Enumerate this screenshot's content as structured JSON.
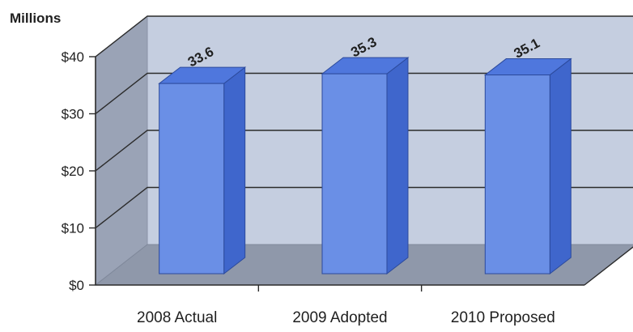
{
  "chart_data": {
    "type": "bar",
    "unit_label": "Millions",
    "categories": [
      "2008 Actual",
      "2009 Adopted",
      "2010 Proposed"
    ],
    "values": [
      33.6,
      35.3,
      35.1
    ],
    "data_labels": [
      "33.6",
      "35.3",
      "35.1"
    ],
    "y_ticks": [
      {
        "value": 0,
        "label": "$0"
      },
      {
        "value": 10,
        "label": "$10"
      },
      {
        "value": 20,
        "label": "$20"
      },
      {
        "value": 30,
        "label": "$30"
      },
      {
        "value": 40,
        "label": "$40"
      }
    ],
    "ylim": [
      0,
      40
    ],
    "grid": true,
    "legend": "none",
    "style": "3d",
    "colors": {
      "bar_front": "#6a8fe6",
      "bar_side": "#3f66cc",
      "bar_top": "#4f77dd",
      "back_wall": "#c5cee0",
      "side_wall": "#9aa3b6",
      "floor": "#8f98aa"
    }
  }
}
